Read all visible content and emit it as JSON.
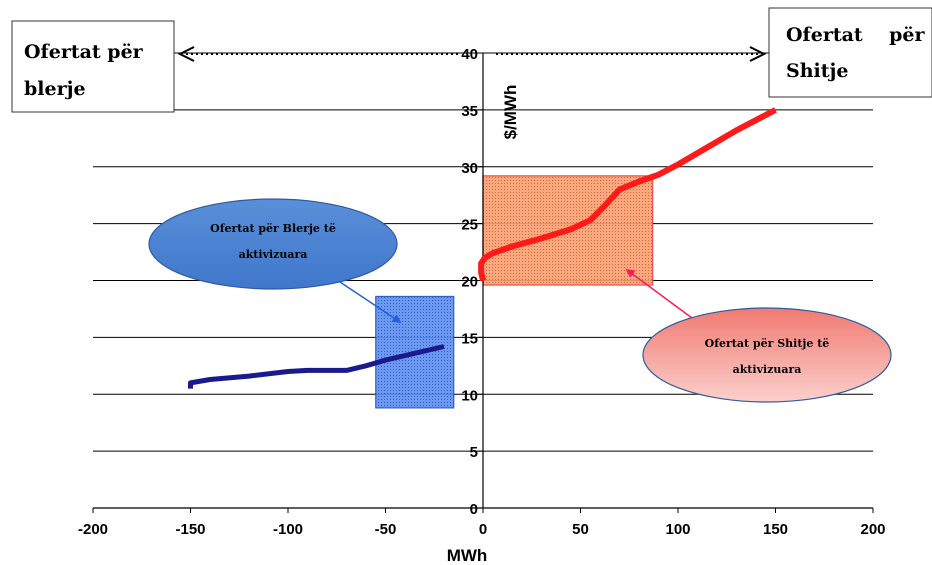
{
  "chart_data": {
    "type": "line",
    "xlabel": "MWh",
    "ylabel": "$/MWh",
    "xlim": [
      -200,
      200
    ],
    "ylim": [
      0,
      40
    ],
    "x_ticks": [
      "-200",
      "-150",
      "-100",
      "-50",
      "0",
      "50",
      "100",
      "150",
      "200"
    ],
    "y_ticks": [
      "0",
      "5",
      "10",
      "15",
      "20",
      "25",
      "30",
      "35",
      "40"
    ],
    "grid": "horizontal",
    "series": [
      {
        "key": "buy",
        "color": "#1a1a8c",
        "points": [
          [
            -150,
            10.5
          ],
          [
            -150,
            11
          ],
          [
            -140,
            11.3
          ],
          [
            -120,
            11.6
          ],
          [
            -100,
            12
          ],
          [
            -90,
            12.1
          ],
          [
            -70,
            12.1
          ],
          [
            -60,
            12.5
          ],
          [
            -50,
            13
          ],
          [
            -40,
            13.4
          ],
          [
            -30,
            13.8
          ],
          [
            -20,
            14.2
          ]
        ]
      },
      {
        "key": "sell",
        "color": "#ff1a1a",
        "points": [
          [
            0,
            20
          ],
          [
            -1,
            20.7
          ],
          [
            -1,
            21.5
          ],
          [
            1,
            22
          ],
          [
            5,
            22.4
          ],
          [
            15,
            23
          ],
          [
            30,
            23.7
          ],
          [
            45,
            24.5
          ],
          [
            55,
            25.3
          ],
          [
            62,
            26.5
          ],
          [
            70,
            28
          ],
          [
            80,
            28.7
          ],
          [
            90,
            29.3
          ],
          [
            100,
            30.2
          ],
          [
            115,
            31.7
          ],
          [
            130,
            33.2
          ],
          [
            150,
            35
          ]
        ]
      }
    ],
    "highlight_boxes": [
      {
        "key": "buy_activated",
        "x": [
          -55,
          -15
        ],
        "y": [
          8.8,
          18.6
        ],
        "fill": "#3a6ee0",
        "stroke": "#1f4fbf"
      },
      {
        "key": "sell_activated",
        "x": [
          0,
          87
        ],
        "y": [
          19.6,
          29.2
        ],
        "fill": "#f07a3a",
        "stroke": "#e83a3a"
      }
    ],
    "annotations": {
      "buy_offers_label_line1": "Ofertat për",
      "buy_offers_label_line2": "blerje",
      "sell_offers_label_line1": "Ofertat    për",
      "sell_offers_label_line2": "Shitje",
      "buy_activated_line1": "Ofertat për Blerje të",
      "buy_activated_line2": "aktivizuara",
      "sell_activated_line1": "Ofertat për Shitje të",
      "sell_activated_line2": "aktivizuara"
    }
  }
}
